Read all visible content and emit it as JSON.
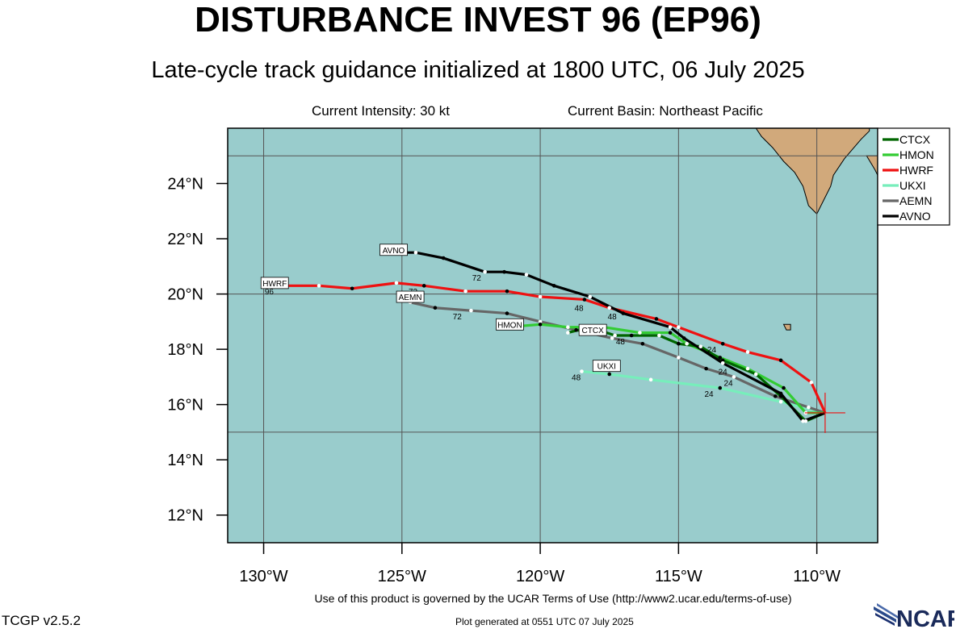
{
  "header": {
    "title": "DISTURBANCE INVEST 96 (EP96)",
    "subtitle": "Late-cycle track guidance initialized at 1800 UTC, 06 July 2025",
    "intensity": "Current Intensity: 30 kt",
    "basin": "Current Basin: Northeast Pacific"
  },
  "map": {
    "lon_range": [
      -131.3,
      -107.8
    ],
    "lat_range": [
      11.0,
      26.0
    ],
    "lon_ticks": [
      {
        "value": -130,
        "label": "130°W"
      },
      {
        "value": -125,
        "label": "125°W"
      },
      {
        "value": -120,
        "label": "120°W"
      },
      {
        "value": -115,
        "label": "115°W"
      },
      {
        "value": -110,
        "label": "110°W"
      }
    ],
    "lat_ticks": [
      {
        "value": 12,
        "label": "12°N"
      },
      {
        "value": 14,
        "label": "14°N"
      },
      {
        "value": 16,
        "label": "16°N"
      },
      {
        "value": 18,
        "label": "18°N"
      },
      {
        "value": 20,
        "label": "20°N"
      },
      {
        "value": 22,
        "label": "22°N"
      },
      {
        "value": 24,
        "label": "24°N"
      }
    ],
    "gridlines_lon": [
      -130,
      -125,
      -120,
      -115,
      -110
    ],
    "gridlines_lat": [
      15,
      20,
      25
    ],
    "ocean_color": "#99cccc",
    "land_color": "#d1a97b",
    "grid_color": "#555555",
    "current_position": {
      "lon": -109.7,
      "lat": 15.7
    },
    "land": [
      [
        [
          -108.1,
          25.9
        ],
        [
          -108.4,
          25.6
        ],
        [
          -109.0,
          24.9
        ],
        [
          -109.4,
          24.3
        ],
        [
          -109.5,
          23.9
        ],
        [
          -109.8,
          23.3
        ],
        [
          -110.0,
          22.9
        ],
        [
          -110.3,
          23.2
        ],
        [
          -110.5,
          23.9
        ],
        [
          -110.8,
          24.4
        ],
        [
          -111.2,
          24.8
        ],
        [
          -111.6,
          25.3
        ],
        [
          -112.0,
          25.7
        ],
        [
          -112.2,
          26.0
        ],
        [
          -108.1,
          26.0
        ]
      ],
      [
        [
          -108.2,
          25.0
        ],
        [
          -107.8,
          25.0
        ],
        [
          -107.8,
          24.3
        ],
        [
          -107.9,
          24.5
        ]
      ],
      [
        [
          -111.2,
          18.9
        ],
        [
          -110.95,
          18.9
        ],
        [
          -110.95,
          18.7
        ],
        [
          -111.1,
          18.7
        ]
      ]
    ]
  },
  "chart_data": {
    "type": "line",
    "title": "DISTURBANCE INVEST 96 (EP96)",
    "xlabel": "",
    "ylabel": "",
    "legend_position": "top-right",
    "series": [
      {
        "name": "CTCX",
        "color": "#006600",
        "points": [
          [
            -109.7,
            15.7
          ],
          [
            -110.4,
            15.4
          ],
          [
            -111.3,
            16.3
          ],
          [
            -112.2,
            17.1
          ],
          [
            -113.4,
            17.6
          ],
          [
            -114.2,
            18.1
          ],
          [
            -115.0,
            18.2
          ],
          [
            -115.7,
            18.5
          ],
          [
            -116.7,
            18.5
          ],
          [
            -117.3,
            18.5
          ],
          [
            -118.2,
            18.8
          ],
          [
            -119.0,
            18.6
          ]
        ],
        "hour_labels": [
          {
            "text": "48",
            "lon": -118.2,
            "lat": 18.6
          }
        ]
      },
      {
        "name": "HMON",
        "color": "#33cc33",
        "points": [
          [
            -109.7,
            15.7
          ],
          [
            -110.4,
            15.7
          ],
          [
            -111.2,
            16.6
          ],
          [
            -112.5,
            17.3
          ],
          [
            -113.5,
            17.7
          ],
          [
            -114.7,
            18.2
          ],
          [
            -115.3,
            18.6
          ],
          [
            -116.4,
            18.6
          ],
          [
            -117.7,
            18.8
          ],
          [
            -119.0,
            18.8
          ],
          [
            -120.0,
            18.9
          ],
          [
            -121.2,
            18.8
          ]
        ],
        "hour_labels": [
          {
            "text": "48",
            "lon": -117.1,
            "lat": 18.3
          }
        ]
      },
      {
        "name": "HWRF",
        "color": "#ee1111",
        "points": [
          [
            -109.7,
            15.7
          ],
          [
            -110.2,
            16.8
          ],
          [
            -111.3,
            17.6
          ],
          [
            -112.5,
            17.9
          ],
          [
            -113.4,
            18.2
          ],
          [
            -115.0,
            18.8
          ],
          [
            -115.8,
            19.1
          ],
          [
            -117.5,
            19.5
          ],
          [
            -118.4,
            19.8
          ],
          [
            -120.0,
            19.9
          ],
          [
            -121.2,
            20.1
          ],
          [
            -122.7,
            20.1
          ],
          [
            -124.2,
            20.3
          ],
          [
            -125.2,
            20.4
          ],
          [
            -126.8,
            20.2
          ],
          [
            -128.0,
            20.3
          ],
          [
            -129.4,
            20.3
          ]
        ],
        "hour_labels": [
          {
            "text": "24",
            "lon": -113.8,
            "lat": 18.0
          },
          {
            "text": "48",
            "lon": -117.4,
            "lat": 19.2
          },
          {
            "text": "72",
            "lon": -124.6,
            "lat": 20.1
          },
          {
            "text": "96",
            "lon": -129.8,
            "lat": 20.1
          }
        ]
      },
      {
        "name": "UKXI",
        "color": "#77eebb",
        "points": [
          [
            -109.7,
            15.7
          ],
          [
            -111.3,
            16.1
          ],
          [
            -113.5,
            16.6
          ],
          [
            -116.0,
            16.9
          ],
          [
            -117.5,
            17.1
          ],
          [
            -118.5,
            17.2
          ]
        ],
        "hour_labels": [
          {
            "text": "24",
            "lon": -113.9,
            "lat": 16.4
          },
          {
            "text": "48",
            "lon": -118.7,
            "lat": 17.0
          }
        ]
      },
      {
        "name": "AEMN",
        "color": "#666666",
        "points": [
          [
            -109.7,
            15.7
          ],
          [
            -110.3,
            15.9
          ],
          [
            -111.5,
            16.3
          ],
          [
            -113.0,
            17.0
          ],
          [
            -114.0,
            17.3
          ],
          [
            -115.0,
            17.7
          ],
          [
            -116.3,
            18.2
          ],
          [
            -117.4,
            18.4
          ],
          [
            -118.7,
            18.7
          ],
          [
            -120.0,
            19.0
          ],
          [
            -121.2,
            19.3
          ],
          [
            -122.5,
            19.4
          ],
          [
            -123.8,
            19.5
          ],
          [
            -124.7,
            19.7
          ]
        ],
        "hour_labels": [
          {
            "text": "24",
            "lon": -113.2,
            "lat": 16.8
          },
          {
            "text": "72",
            "lon": -123.0,
            "lat": 19.2
          }
        ]
      },
      {
        "name": "AVNO",
        "color": "#000000",
        "points": [
          [
            -109.7,
            15.7
          ],
          [
            -110.5,
            15.4
          ],
          [
            -111.3,
            16.4
          ],
          [
            -113.4,
            17.5
          ],
          [
            -114.8,
            18.4
          ],
          [
            -115.3,
            18.8
          ],
          [
            -117.0,
            19.3
          ],
          [
            -118.2,
            19.9
          ],
          [
            -119.5,
            20.3
          ],
          [
            -120.5,
            20.7
          ],
          [
            -121.3,
            20.8
          ],
          [
            -122.0,
            20.8
          ],
          [
            -123.5,
            21.3
          ],
          [
            -124.5,
            21.5
          ],
          [
            -125.2,
            21.5
          ]
        ],
        "hour_labels": [
          {
            "text": "24",
            "lon": -113.4,
            "lat": 17.2
          },
          {
            "text": "48",
            "lon": -118.6,
            "lat": 19.5
          },
          {
            "text": "72",
            "lon": -122.3,
            "lat": 20.6
          }
        ]
      }
    ],
    "track_labels": [
      {
        "text": "AVNO",
        "lon": -125.3,
        "lat": 21.6
      },
      {
        "text": "HWRF",
        "lon": -129.6,
        "lat": 20.4
      },
      {
        "text": "AEMN",
        "lon": -124.7,
        "lat": 19.9
      },
      {
        "text": "HMON",
        "lon": -121.1,
        "lat": 18.9
      },
      {
        "text": "CTCX",
        "lon": -118.1,
        "lat": 18.7
      },
      {
        "text": "UKXI",
        "lon": -117.6,
        "lat": 17.4
      }
    ]
  },
  "footer": {
    "terms": "Use of this product is governed by the UCAR Terms of Use (http://www2.ucar.edu/terms-of-use)",
    "version": "TCGP v2.5.2",
    "generated": "Plot generated at 0551 UTC   07 July 2025",
    "logo_text": "NCAR"
  }
}
